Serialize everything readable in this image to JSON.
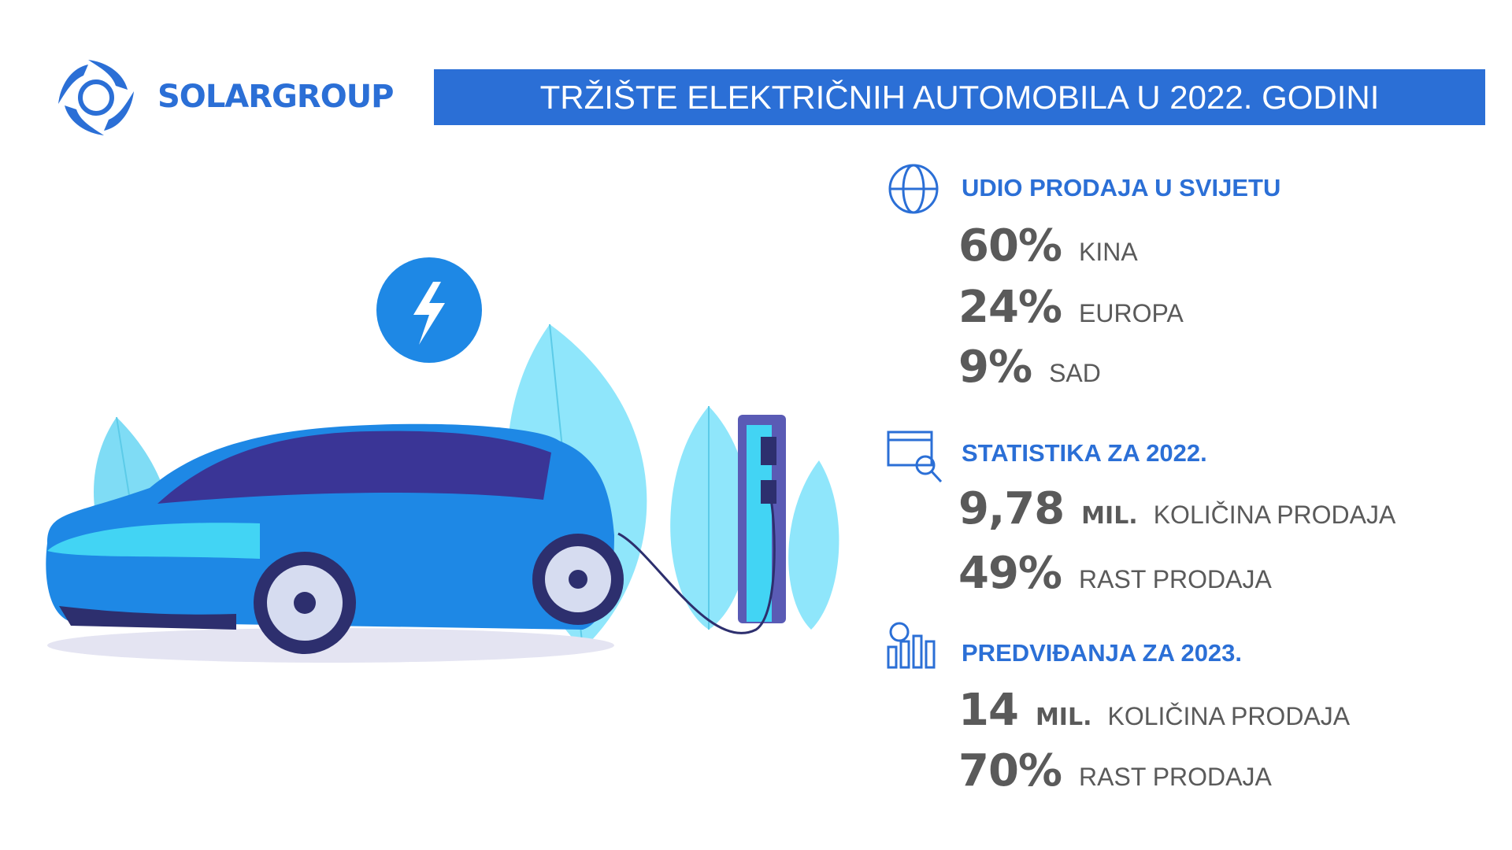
{
  "header": {
    "logo": "SOLARGROUP",
    "title": "TRŽIŠTE ELEKTRIČNIH AUTOMOBILA U 2022. GODINI"
  },
  "sections": [
    {
      "title": "UDIO PRODAJA U SVIJETU",
      "items": [
        {
          "value": "60%",
          "label": "KINA"
        },
        {
          "value": "24%",
          "label": "EUROPA"
        },
        {
          "value": "9%",
          "label": "SAD"
        }
      ]
    },
    {
      "title": "STATISTIKA ZA 2022.",
      "items": [
        {
          "value": "9,78",
          "unit": "MIL.",
          "label": "KOLIČINA PRODAJA"
        },
        {
          "value": "49%",
          "label": "RAST PRODAJA"
        }
      ]
    },
    {
      "title": "PREDVIĐANJA ZA 2023.",
      "items": [
        {
          "value": "14",
          "unit": "MIL.",
          "label": "KOLIČINA PRODAJA"
        },
        {
          "value": "70%",
          "label": "RAST PRODAJA"
        }
      ]
    }
  ]
}
